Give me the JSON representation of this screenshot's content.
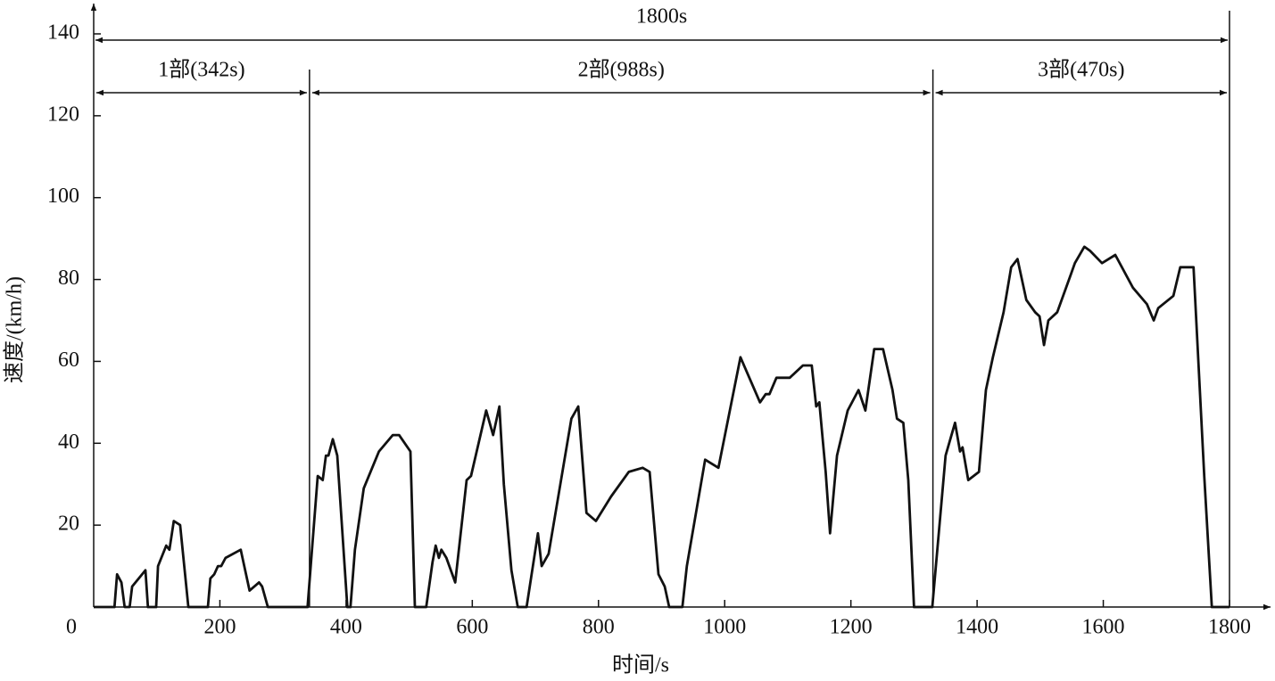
{
  "chart_data": {
    "type": "line",
    "xlabel": "时间/s",
    "ylabel": "速度/(km/h)",
    "xlim": [
      0,
      1800
    ],
    "ylim": [
      0,
      140
    ],
    "xticks": [
      0,
      200,
      400,
      600,
      800,
      1000,
      1200,
      1400,
      1600,
      1800
    ],
    "yticks": [
      20,
      40,
      60,
      80,
      100,
      120,
      140
    ],
    "total_span": {
      "label": "1800s",
      "from": 0,
      "to": 1800
    },
    "phases": [
      {
        "label": "1部(342s)",
        "from": 0,
        "to": 342
      },
      {
        "label": "2部(988s)",
        "from": 342,
        "to": 1330
      },
      {
        "label": "3部(470s)",
        "from": 1330,
        "to": 1800
      }
    ],
    "series": [
      {
        "color": "#111111",
        "x": [
          0,
          33,
          37,
          44,
          49,
          57,
          61,
          82,
          86,
          99,
          102,
          115,
          120,
          127,
          137,
          150,
          181,
          185,
          191,
          197,
          202,
          209,
          233,
          247,
          262,
          267,
          276,
          339,
          355,
          363,
          368,
          372,
          379,
          386,
          402,
          407,
          414,
          428,
          452,
          474,
          484,
          502,
          509,
          527,
          537,
          542,
          547,
          551,
          559,
          573,
          591,
          598,
          622,
          633,
          643,
          650,
          662,
          672,
          686,
          704,
          710,
          721,
          757,
          768,
          781,
          796,
          820,
          848,
          870,
          881,
          895,
          905,
          912,
          933,
          940,
          969,
          990,
          1025,
          1056,
          1065,
          1071,
          1082,
          1103,
          1124,
          1138,
          1145,
          1150,
          1160,
          1167,
          1178,
          1195,
          1212,
          1223,
          1237,
          1251,
          1266,
          1273,
          1283,
          1291,
          1300,
          1329,
          1350,
          1365,
          1373,
          1377,
          1386,
          1403,
          1414,
          1425,
          1442,
          1454,
          1464,
          1478,
          1492,
          1499,
          1506,
          1513,
          1527,
          1548,
          1555,
          1570,
          1579,
          1598,
          1619,
          1647,
          1669,
          1680,
          1687,
          1711,
          1722,
          1732,
          1743,
          1760,
          1772,
          1800
        ],
        "values": [
          0,
          0,
          8,
          6,
          0,
          0,
          5,
          9,
          0,
          0,
          10,
          15,
          14,
          21,
          20,
          0,
          0,
          7,
          8,
          10,
          10,
          12,
          14,
          4,
          6,
          5,
          0,
          0,
          32,
          31,
          37,
          37,
          41,
          37,
          0,
          0,
          14,
          29,
          38,
          42,
          42,
          38,
          0,
          0,
          11,
          15,
          12,
          14,
          12,
          6,
          31,
          32,
          48,
          42,
          49,
          30,
          9,
          0,
          0,
          18,
          10,
          13,
          46,
          49,
          23,
          21,
          27,
          33,
          34,
          33,
          8,
          5,
          0,
          0,
          10,
          36,
          34,
          61,
          50,
          52,
          52,
          56,
          56,
          59,
          59,
          49,
          50,
          33,
          18,
          37,
          48,
          53,
          48,
          63,
          63,
          53,
          46,
          45,
          31,
          0,
          0,
          37,
          45,
          38,
          39,
          31,
          33,
          53,
          61,
          72,
          83,
          85,
          75,
          72,
          71,
          64,
          70,
          72,
          81,
          84,
          88,
          87,
          84,
          86,
          78,
          74,
          70,
          73,
          76,
          83,
          83,
          83,
          32,
          0,
          0
        ]
      }
    ]
  }
}
